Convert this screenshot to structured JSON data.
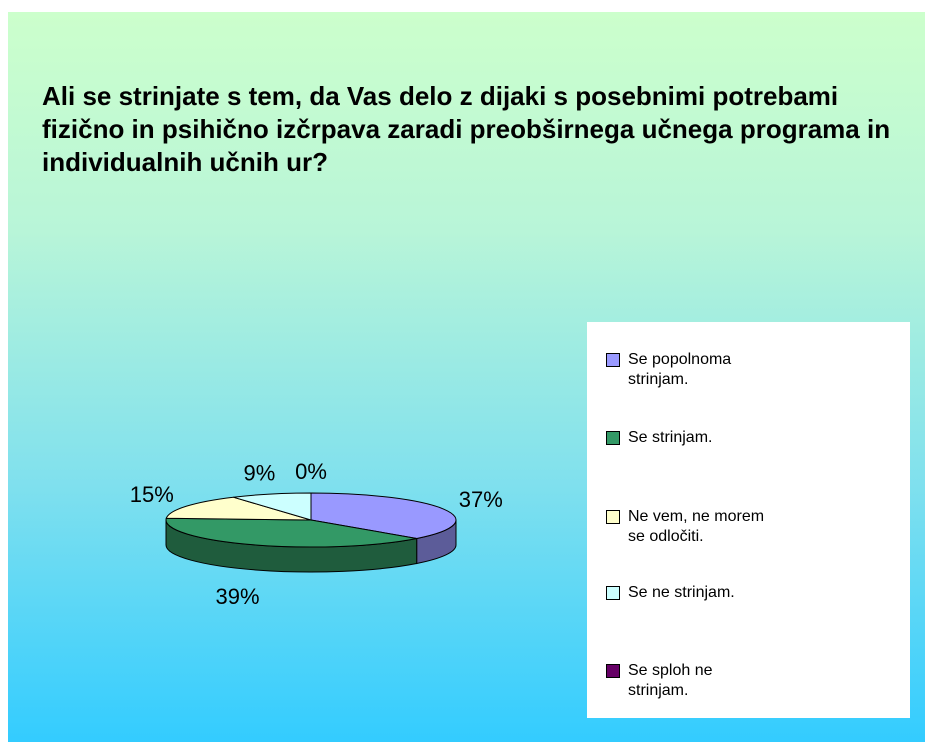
{
  "chart_data": {
    "type": "pie",
    "title": "Ali se strinjate s tem, da Vas delo z dijaki s posebnimi potrebami fizično in psihično izčrpava zaradi preobširnega učnega programa in individualnih učnih ur?",
    "labels": [
      "Se popolnoma strinjam.",
      "Se strinjam.",
      "Ne vem, ne morem se odločiti.",
      "Se ne strinjam.",
      "Se sploh ne strinjam."
    ],
    "values": [
      37,
      39,
      15,
      9,
      0
    ],
    "value_labels": [
      "37%",
      "39%",
      "15%",
      "9%",
      "0%"
    ],
    "colors": [
      "#9999ff",
      "#339966",
      "#ffffcc",
      "#ccffff",
      "#660066"
    ],
    "legend": "right"
  }
}
